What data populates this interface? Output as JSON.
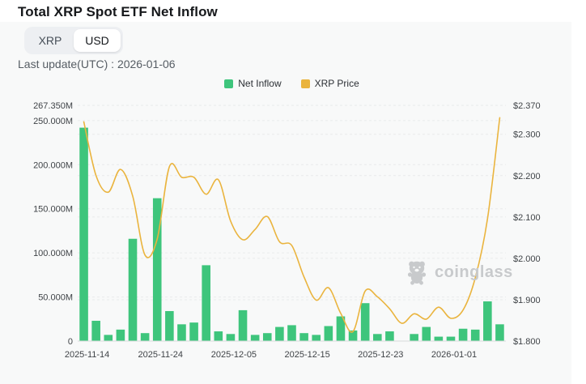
{
  "page": {
    "title": "Total XRP Spot ETF Net Inflow",
    "last_update": "Last update(UTC) : 2026-01-06",
    "watermark_text": "coinglass"
  },
  "toggle": {
    "options": [
      "XRP",
      "USD"
    ],
    "selected": "USD"
  },
  "legend": {
    "items": [
      {
        "label": "Net Inflow",
        "color": "#3ec57c"
      },
      {
        "label": "XRP Price",
        "color": "#eab43e"
      }
    ]
  },
  "chart_data": {
    "type": "bar",
    "title": "Total XRP Spot ETF Net Inflow",
    "num_points": 35,
    "grid": "dashed",
    "legend_position": "top-center",
    "x_tick_labels": [
      {
        "index": 0,
        "label": "2025-11-14"
      },
      {
        "index": 6,
        "label": "2025-11-24"
      },
      {
        "index": 12,
        "label": "2025-12-05"
      },
      {
        "index": 18,
        "label": "2025-12-15"
      },
      {
        "index": 24,
        "label": "2025-12-23"
      },
      {
        "index": 30,
        "label": "2026-01-01"
      }
    ],
    "series": [
      {
        "name": "Net Inflow",
        "type": "bar",
        "axis": "left",
        "unit": "M",
        "color": "#3ec57c",
        "values": [
          242,
          23,
          7,
          13,
          116,
          9,
          162,
          34,
          19,
          21,
          86,
          11,
          8,
          35,
          7,
          9,
          16,
          18,
          9,
          7,
          17,
          28,
          12,
          43,
          8,
          11,
          0,
          8,
          16,
          5,
          5,
          14,
          13,
          45,
          19
        ]
      },
      {
        "name": "XRP Price",
        "type": "line",
        "axis": "right",
        "unit": "$",
        "color": "#eab43e",
        "values": [
          2.33,
          2.2,
          2.16,
          2.215,
          2.15,
          2.008,
          2.047,
          2.222,
          2.196,
          2.196,
          2.155,
          2.19,
          2.09,
          2.045,
          2.07,
          2.101,
          2.04,
          2.031,
          1.955,
          1.899,
          1.929,
          1.867,
          1.823,
          1.921,
          1.907,
          1.878,
          1.843,
          1.866,
          1.853,
          1.882,
          1.855,
          1.875,
          1.953,
          2.096,
          2.34
        ]
      }
    ],
    "y_axis_left": {
      "min": 0,
      "max": 267.35,
      "ticks": [
        {
          "label": "267.350M",
          "value": 267.35
        },
        {
          "label": "250.000M",
          "value": 250
        },
        {
          "label": "200.000M",
          "value": 200
        },
        {
          "label": "150.000M",
          "value": 150
        },
        {
          "label": "100.000M",
          "value": 100
        },
        {
          "label": "50.000M",
          "value": 50
        },
        {
          "label": "0",
          "value": 0
        }
      ]
    },
    "y_axis_right": {
      "min": 1.8,
      "max": 2.37,
      "ticks": [
        {
          "label": "$2.370",
          "value": 2.37
        },
        {
          "label": "$2.300",
          "value": 2.3
        },
        {
          "label": "$2.200",
          "value": 2.2
        },
        {
          "label": "$2.100",
          "value": 2.1
        },
        {
          "label": "$2.000",
          "value": 2.0
        },
        {
          "label": "$1.900",
          "value": 1.9
        },
        {
          "label": "$1.800",
          "value": 1.8
        }
      ]
    }
  }
}
